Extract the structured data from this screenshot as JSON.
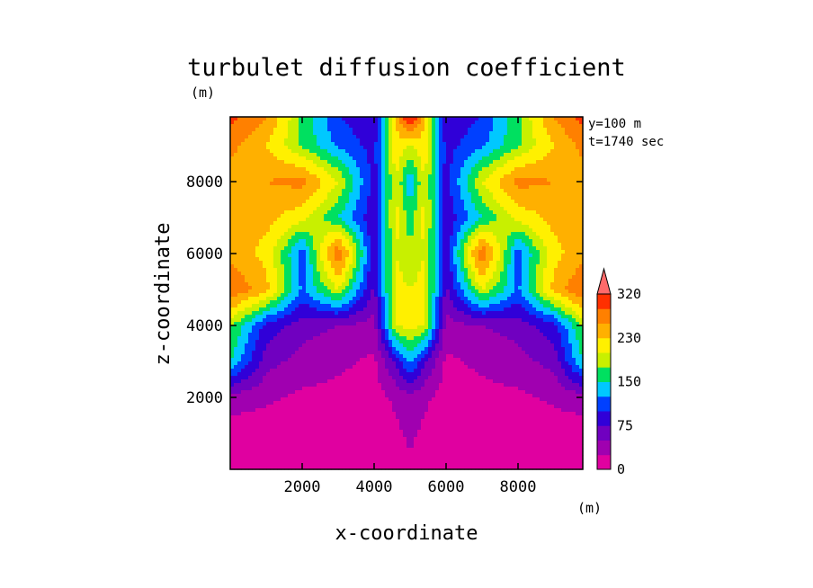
{
  "chart_data": {
    "type": "heatmap",
    "title": "turbulet diffusion coefficient",
    "xlabel": "x-coordinate",
    "ylabel": "z-coordinate",
    "x_unit": "(m)",
    "y_unit": "(m)",
    "annotations": [
      "y=100 m",
      "t=1740 sec"
    ],
    "xlim": [
      0,
      9800
    ],
    "ylim": [
      0,
      9800
    ],
    "x_ticks": [
      2000,
      4000,
      6000,
      8000
    ],
    "y_ticks": [
      2000,
      4000,
      6000,
      8000
    ],
    "colorbar": {
      "levels": [
        0,
        25,
        50,
        75,
        100,
        125,
        150,
        175,
        200,
        230,
        260,
        290,
        320
      ],
      "tick_labels": [
        "320",
        "230",
        "150",
        "75",
        "0"
      ],
      "colors": [
        "#e000a0",
        "#a000b0",
        "#7000c0",
        "#3000d8",
        "#0040ff",
        "#00c8ff",
        "#00e060",
        "#c8f000",
        "#fff000",
        "#ffb000",
        "#ff8000",
        "#ff3000",
        "#ff6a6a"
      ],
      "extend": "max"
    },
    "field": {
      "rows_top_to_bottom_z": [
        9800,
        9000,
        8000,
        7000,
        6000,
        5000,
        4000,
        3000,
        2000,
        1000,
        0
      ],
      "cols_x": [
        0,
        1000,
        2000,
        3000,
        4000,
        4600,
        5000,
        5400,
        6000,
        7000,
        8000,
        9000,
        9800
      ],
      "values": [
        [
          300,
          260,
          170,
          100,
          80,
          230,
          340,
          230,
          80,
          100,
          170,
          260,
          300
        ],
        [
          270,
          230,
          170,
          120,
          90,
          220,
          200,
          220,
          90,
          120,
          170,
          230,
          270
        ],
        [
          240,
          260,
          270,
          200,
          90,
          200,
          130,
          200,
          90,
          200,
          270,
          260,
          240
        ],
        [
          230,
          240,
          210,
          150,
          80,
          210,
          160,
          210,
          80,
          150,
          210,
          240,
          230
        ],
        [
          250,
          220,
          110,
          290,
          80,
          200,
          180,
          200,
          80,
          290,
          110,
          220,
          250
        ],
        [
          290,
          240,
          120,
          200,
          70,
          210,
          200,
          210,
          70,
          200,
          120,
          240,
          290
        ],
        [
          180,
          90,
          60,
          50,
          40,
          200,
          210,
          200,
          40,
          50,
          60,
          90,
          180
        ],
        [
          150,
          60,
          40,
          30,
          20,
          80,
          130,
          80,
          20,
          30,
          40,
          60,
          150
        ],
        [
          40,
          30,
          20,
          18,
          15,
          30,
          40,
          30,
          15,
          18,
          20,
          30,
          40
        ],
        [
          10,
          10,
          10,
          10,
          10,
          20,
          30,
          20,
          10,
          10,
          10,
          10,
          10
        ],
        [
          5,
          5,
          5,
          5,
          5,
          10,
          20,
          10,
          5,
          5,
          5,
          5,
          5
        ]
      ]
    }
  }
}
